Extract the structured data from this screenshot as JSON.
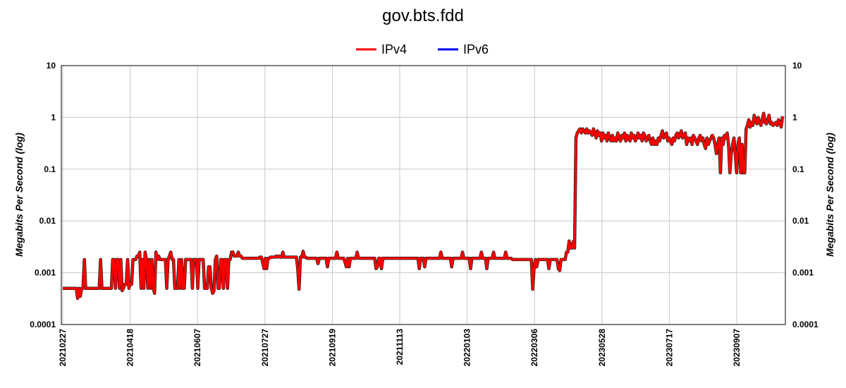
{
  "chart_data": {
    "type": "line",
    "title": "gov.bts.fdd",
    "ylabel": "Megabits Per Second (log)",
    "y_scale": "log",
    "ylim": [
      0.0001,
      10
    ],
    "y_ticks": [
      "10",
      "1",
      "0.1",
      "0.01",
      "0.001",
      "0.0001"
    ],
    "x_ticks": [
      "20210227",
      "20210418",
      "20210607",
      "20210727",
      "20210919",
      "20211113",
      "20220103",
      "20220306",
      "20230528",
      "20230717",
      "20230907"
    ],
    "grid": true,
    "legend_position": "top-center",
    "series": [
      {
        "name": "IPv4",
        "color": "#ff0000",
        "values": [
          0.0005,
          0.0005,
          0.0005,
          0.0005,
          0.0005,
          0.0005,
          0.0005,
          0.0005,
          0.0005,
          0.0005,
          0.0005,
          0.00032,
          0.0005,
          0.00035,
          0.0005,
          0.0005,
          0.0018,
          0.0005,
          0.0005,
          0.0005,
          0.0005,
          0.0005,
          0.0005,
          0.0005,
          0.0005,
          0.0005,
          0.0005,
          0.0005,
          0.0018,
          0.0005,
          0.0005,
          0.0005,
          0.0005,
          0.0005,
          0.0005,
          0.0005,
          0.0005,
          0.0018,
          0.0018,
          0.0005,
          0.0018,
          0.0018,
          0.0005,
          0.0018,
          0.00045,
          0.0005,
          0.0006,
          0.0006,
          0.0018,
          0.0005,
          0.0006,
          0.0006,
          0.0018,
          0.0018,
          0.0018,
          0.0021,
          0.0021,
          0.0025,
          0.0005,
          0.0018,
          0.0005,
          0.0025,
          0.0018,
          0.0005,
          0.0018,
          0.0005,
          0.0018,
          0.0005,
          0.0004,
          0.0025,
          0.0018,
          0.0021,
          0.0018,
          0.0018,
          0.0018,
          0.0018,
          0.0018,
          0.0005,
          0.0018,
          0.0021,
          0.0025,
          0.0018,
          0.0018,
          0.0005,
          0.0005,
          0.0005,
          0.0018,
          0.0005,
          0.0018,
          0.0005,
          0.0005,
          0.0018,
          0.0018,
          0.0018,
          0.0018,
          0.0018,
          0.0005,
          0.0018,
          0.0018,
          0.0018,
          0.0005,
          0.0018,
          0.0018,
          0.0018,
          0.0018,
          0.0005,
          0.0005,
          0.0005,
          0.0013,
          0.0013,
          0.0005,
          0.0004,
          0.00045,
          0.0018,
          0.0021,
          0.0005,
          0.0005,
          0.0018,
          0.0018,
          0.0005,
          0.0018,
          0.0018,
          0.0005,
          0.0018,
          0.0018,
          0.0025,
          0.0025,
          0.0021,
          0.0021,
          0.0021,
          0.0025,
          0.0021,
          0.0021,
          0.0019,
          0.0019,
          0.0019,
          0.0019,
          0.0019,
          0.0019,
          0.0019,
          0.0019,
          0.0019,
          0.0019,
          0.0019,
          0.0019,
          0.0019,
          0.002,
          0.002,
          0.0016,
          0.0012,
          0.0019,
          0.0012,
          0.0019,
          0.0019,
          0.002,
          0.002,
          0.002,
          0.002,
          0.0021,
          0.002,
          0.0021,
          0.002,
          0.002,
          0.0025,
          0.002,
          0.002,
          0.002,
          0.002,
          0.002,
          0.002,
          0.002,
          0.002,
          0.002,
          0.002,
          0.0012,
          0.00048,
          0.002,
          0.002,
          0.0026,
          0.002,
          0.002,
          0.0019,
          0.0019,
          0.0019,
          0.0019,
          0.0019,
          0.0019,
          0.0019,
          0.0019,
          0.0015,
          0.0019,
          0.0019,
          0.0019,
          0.0019,
          0.0019,
          0.0019,
          0.0013,
          0.0019,
          0.0019,
          0.0019,
          0.0019,
          0.0019,
          0.0019,
          0.0025,
          0.0019,
          0.0019,
          0.0019,
          0.0019,
          0.0019,
          0.0016,
          0.0013,
          0.0019,
          0.0013,
          0.0019,
          0.0019,
          0.0019,
          0.0019,
          0.0019,
          0.0025,
          0.0019,
          0.0019,
          0.0019,
          0.0019,
          0.0019,
          0.0019,
          0.0019,
          0.0019,
          0.0019,
          0.0019,
          0.0019,
          0.0019,
          0.0019,
          0.0012,
          0.0013,
          0.0019,
          0.0019,
          0.0012,
          0.0019,
          0.0019,
          0.0019,
          0.0019,
          0.0019,
          0.0019,
          0.0019,
          0.0019,
          0.0019,
          0.0019,
          0.0019,
          0.0019,
          0.0019,
          0.0019,
          0.0019,
          0.0019,
          0.0019,
          0.0019,
          0.0019,
          0.0019,
          0.0019,
          0.0019,
          0.0019,
          0.0019,
          0.0019,
          0.0019,
          0.0019,
          0.0012,
          0.0019,
          0.0019,
          0.0019,
          0.0013,
          0.0019,
          0.0019,
          0.0019,
          0.0019,
          0.0019,
          0.0019,
          0.0019,
          0.0019,
          0.0019,
          0.0019,
          0.0019,
          0.0025,
          0.0019,
          0.0019,
          0.0019,
          0.0019,
          0.0019,
          0.0019,
          0.0019,
          0.0013,
          0.0019,
          0.0019,
          0.0019,
          0.0019,
          0.0019,
          0.0019,
          0.0019,
          0.0025,
          0.0019,
          0.0019,
          0.0019,
          0.0019,
          0.0019,
          0.0012,
          0.0019,
          0.0019,
          0.0019,
          0.0019,
          0.0019,
          0.0019,
          0.0019,
          0.0025,
          0.0019,
          0.0019,
          0.0019,
          0.0012,
          0.0019,
          0.0019,
          0.0019,
          0.0019,
          0.0025,
          0.0019,
          0.0019,
          0.0019,
          0.0019,
          0.0019,
          0.0019,
          0.0019,
          0.0019,
          0.0025,
          0.0019,
          0.0019,
          0.0019,
          0.0019,
          0.0018,
          0.0018,
          0.0018,
          0.0018,
          0.0018,
          0.0018,
          0.0018,
          0.0018,
          0.0018,
          0.0018,
          0.0018,
          0.0018,
          0.0018,
          0.0018,
          0.0018,
          0.00048,
          0.0012,
          0.0018,
          0.0013,
          0.0018,
          0.0018,
          0.0018,
          0.0018,
          0.0018,
          0.0018,
          0.0018,
          0.0018,
          0.0012,
          0.0018,
          0.0018,
          0.0018,
          0.0018,
          0.0018,
          0.0018,
          0.0012,
          0.0011,
          0.0018,
          0.0018,
          0.0018,
          0.0018,
          0.0025,
          0.0025,
          0.0041,
          0.003,
          0.003,
          0.004,
          0.003,
          0.4,
          0.5,
          0.55,
          0.6,
          0.5,
          0.6,
          0.55,
          0.5,
          0.6,
          0.5,
          0.55,
          0.5,
          0.45,
          0.6,
          0.5,
          0.4,
          0.55,
          0.45,
          0.5,
          0.35,
          0.5,
          0.4,
          0.45,
          0.35,
          0.5,
          0.4,
          0.35,
          0.45,
          0.35,
          0.4,
          0.35,
          0.5,
          0.4,
          0.35,
          0.45,
          0.4,
          0.5,
          0.35,
          0.45,
          0.4,
          0.35,
          0.5,
          0.4,
          0.45,
          0.35,
          0.4,
          0.5,
          0.4,
          0.45,
          0.35,
          0.5,
          0.45,
          0.35,
          0.4,
          0.45,
          0.35,
          0.3,
          0.4,
          0.3,
          0.35,
          0.3,
          0.4,
          0.35,
          0.45,
          0.55,
          0.4,
          0.45,
          0.5,
          0.35,
          0.4,
          0.35,
          0.3,
          0.4,
          0.35,
          0.45,
          0.5,
          0.4,
          0.45,
          0.55,
          0.4,
          0.45,
          0.5,
          0.3,
          0.4,
          0.35,
          0.4,
          0.3,
          0.45,
          0.4,
          0.35,
          0.3,
          0.4,
          0.45,
          0.35,
          0.4,
          0.3,
          0.25,
          0.4,
          0.3,
          0.35,
          0.4,
          0.45,
          0.4,
          0.3,
          0.2,
          0.3,
          0.4,
          0.085,
          0.4,
          0.3,
          0.45,
          0.4,
          0.5,
          0.3,
          0.085,
          0.2,
          0.3,
          0.4,
          0.2,
          0.085,
          0.3,
          0.4,
          0.085,
          0.3,
          0.085,
          0.085,
          0.6,
          0.7,
          0.9,
          0.65,
          0.8,
          0.7,
          1.1,
          0.9,
          0.75,
          1.0,
          0.8,
          0.7,
          0.9,
          1.2,
          0.8,
          0.75,
          0.9,
          1.1,
          0.75,
          0.8,
          0.7,
          0.75,
          0.8,
          0.7,
          0.9,
          0.8,
          0.65,
          1.05
        ]
      },
      {
        "name": "IPv6",
        "color": "#0000ff",
        "values": []
      }
    ]
  }
}
